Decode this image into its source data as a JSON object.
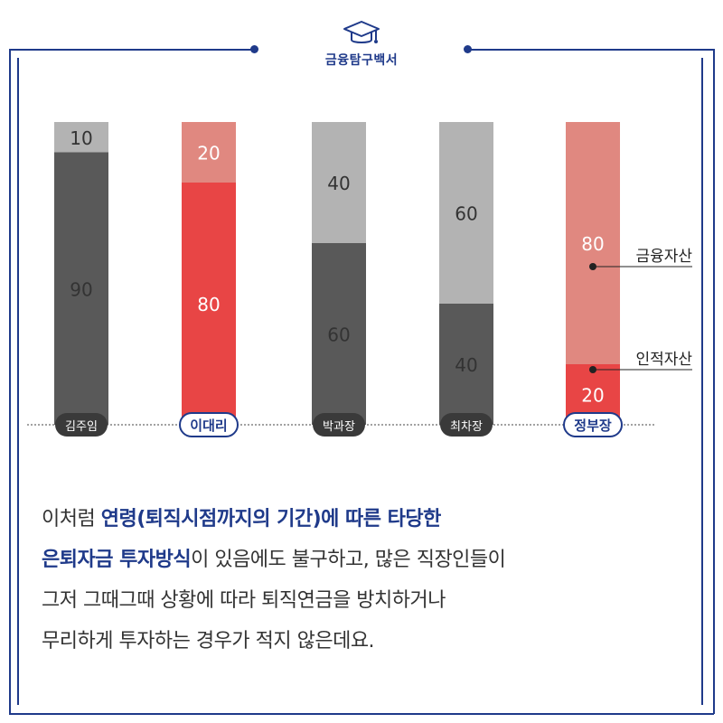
{
  "brand": {
    "name": "금융탐구백서",
    "icon": "graduation-cap-icon"
  },
  "colors": {
    "navy": "#1f3a8a",
    "dark_gray": "#595959",
    "light_gray": "#b3b3b3",
    "red": "#e84545",
    "salmon": "#e08880"
  },
  "chart_data": {
    "type": "bar",
    "stacked": true,
    "percent_stacked": true,
    "categories": [
      "김주임",
      "이대리",
      "박과장",
      "최차장",
      "정부장"
    ],
    "series": [
      {
        "name": "인적자산",
        "values": [
          90,
          80,
          60,
          40,
          20
        ]
      },
      {
        "name": "금융자산",
        "values": [
          10,
          20,
          40,
          60,
          80
        ]
      }
    ],
    "ylim": [
      0,
      100
    ],
    "grid": false,
    "highlighted_categories": [
      "이대리",
      "정부장"
    ],
    "legend_labels": [
      "금융자산",
      "인적자산"
    ]
  },
  "text": {
    "line1_plain": "이처럼 ",
    "line1_bold": "연령(퇴직시점까지의 기간)에 따른 타당한",
    "line2_bold": "은퇴자금 투자방식",
    "line2_plain": "이 있음에도 불구하고, 많은 직장인들이",
    "line3": "그저 그때그때 상황에 따라 퇴직연금을 방치하거나",
    "line4": "무리하게 투자하는 경우가 적지 않은데요."
  }
}
